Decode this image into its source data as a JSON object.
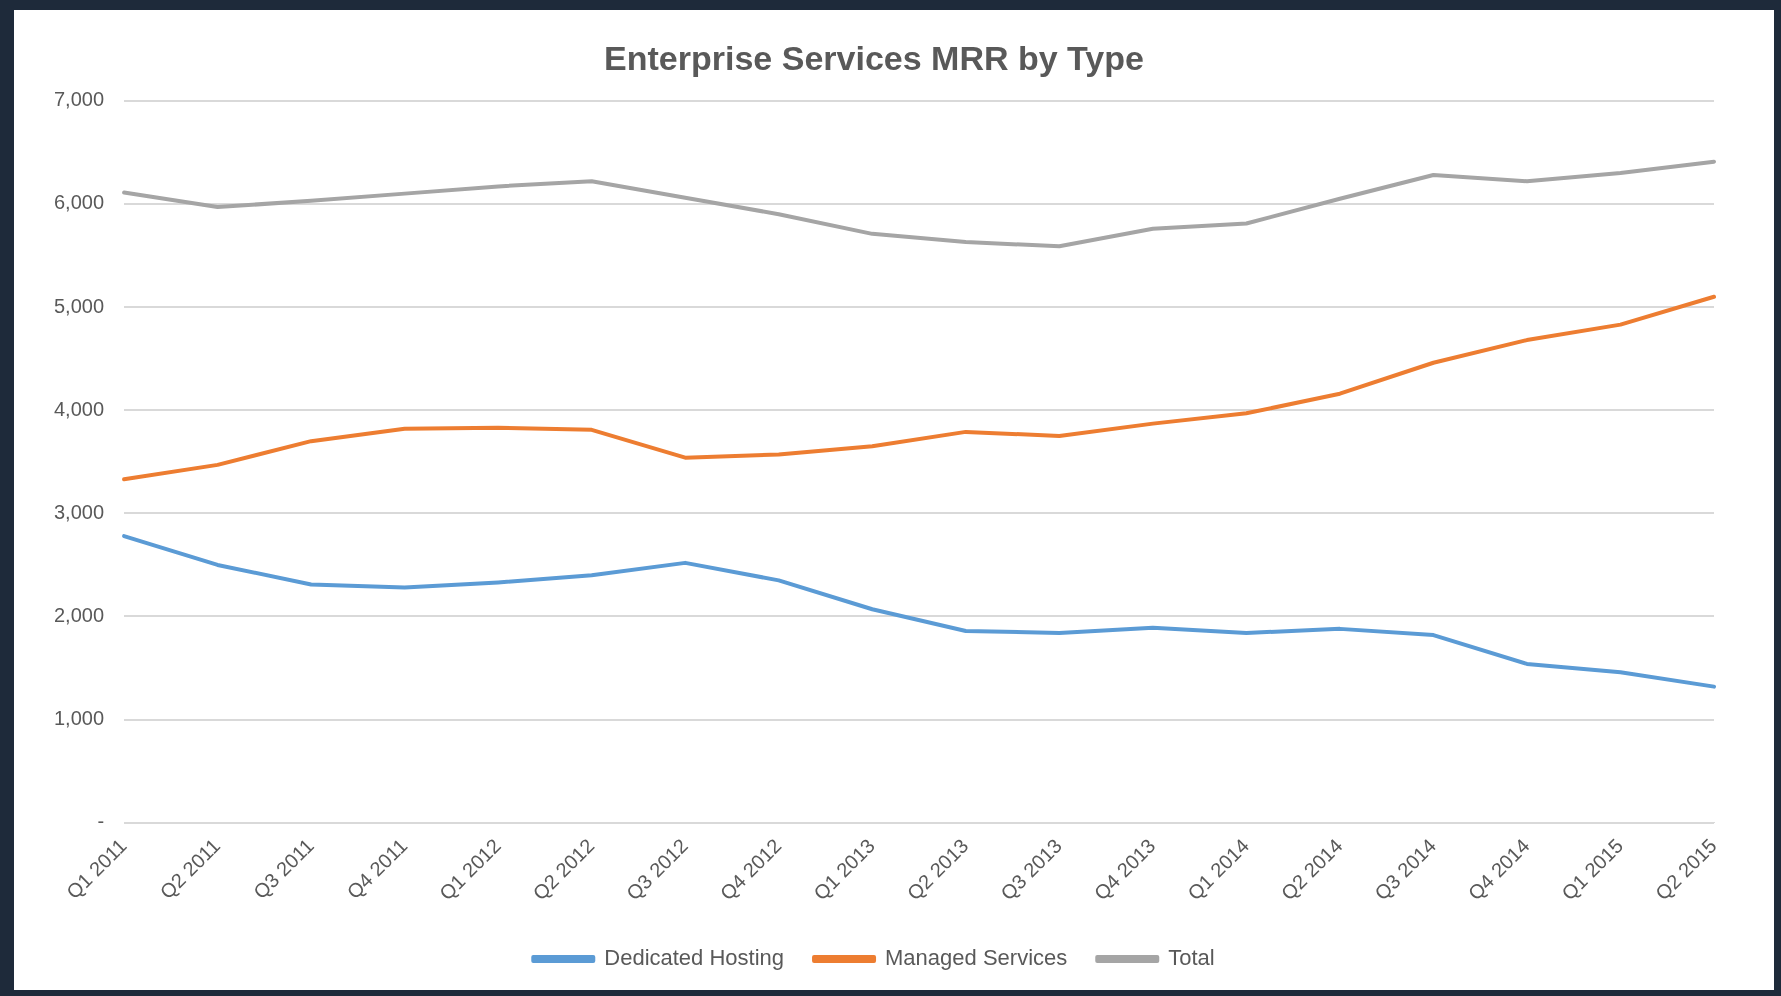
{
  "chart_data": {
    "type": "line",
    "title": "Enterprise Services MRR by Type",
    "categories": [
      "Q1 2011",
      "Q2 2011",
      "Q3 2011",
      "Q4 2011",
      "Q1 2012",
      "Q2 2012",
      "Q3 2012",
      "Q4 2012",
      "Q1 2013",
      "Q2 2013",
      "Q3 2013",
      "Q4 2013",
      "Q1 2014",
      "Q2 2014",
      "Q3 2014",
      "Q4 2014",
      "Q1 2015",
      "Q2 2015"
    ],
    "series": [
      {
        "name": "Dedicated Hosting",
        "color": "#5b9bd5",
        "values": [
          2780,
          2500,
          2310,
          2280,
          2330,
          2400,
          2520,
          2350,
          2070,
          1860,
          1840,
          1890,
          1840,
          1880,
          1820,
          1540,
          1460,
          1320
        ]
      },
      {
        "name": "Managed Services",
        "color": "#ed7d31",
        "values": [
          3330,
          3470,
          3700,
          3820,
          3830,
          3810,
          3540,
          3570,
          3650,
          3790,
          3750,
          3870,
          3970,
          4160,
          4460,
          4680,
          4830,
          5100
        ]
      },
      {
        "name": "Total",
        "color": "#a5a5a5",
        "values": [
          6110,
          5970,
          6030,
          6100,
          6170,
          6220,
          6060,
          5900,
          5710,
          5630,
          5590,
          5760,
          5810,
          6050,
          6280,
          6220,
          6300,
          6410
        ]
      }
    ],
    "ylim": [
      0,
      7000
    ],
    "yticks": [
      {
        "value": 0,
        "label": "-"
      },
      {
        "value": 1000,
        "label": "1,000"
      },
      {
        "value": 2000,
        "label": "2,000"
      },
      {
        "value": 3000,
        "label": "3,000"
      },
      {
        "value": 4000,
        "label": "4,000"
      },
      {
        "value": 5000,
        "label": "5,000"
      },
      {
        "value": 6000,
        "label": "6,000"
      },
      {
        "value": 7000,
        "label": "7,000"
      }
    ],
    "grid": "y",
    "legend": "bottom",
    "marker": "none",
    "line_style": "solid"
  }
}
